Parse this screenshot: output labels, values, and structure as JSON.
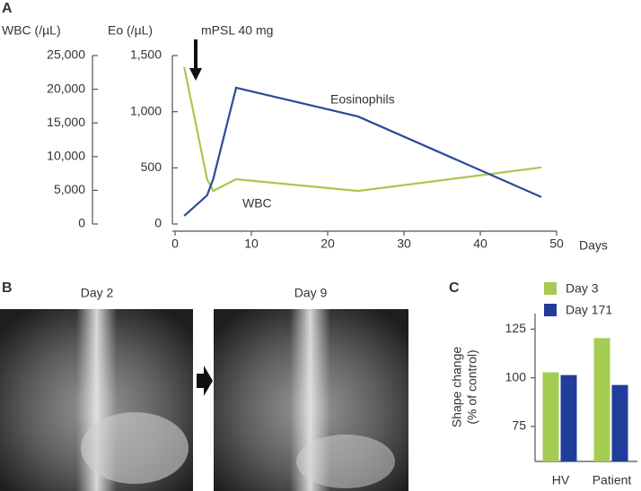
{
  "chart_data": [
    {
      "type": "line",
      "label": "A",
      "y_label": "WBC (/µL)",
      "y2_label": "Eo (/µL)",
      "x_label": "Days",
      "annotations": [
        "mPSL 40 mg",
        "Eosinophils",
        "WBC"
      ],
      "x": [
        1.2,
        4.2,
        5,
        8,
        24,
        48
      ],
      "xlim": [
        0,
        50
      ],
      "xticks": [
        0,
        10,
        20,
        30,
        40,
        50
      ],
      "ylim": [
        0,
        25000
      ],
      "yticks": [
        0,
        {
          "value": 5000,
          "label": "5,000"
        },
        {
          "value": 10000,
          "label": "10,000"
        },
        {
          "value": 15000,
          "label": "15,000"
        },
        {
          "value": 20000,
          "label": "20,000"
        },
        {
          "value": 25000,
          "label": "25,000"
        }
      ],
      "y2lim": [
        0,
        1500
      ],
      "y2ticks": [
        0,
        500,
        {
          "value": 1000,
          "label": "1,000"
        },
        {
          "value": 1500,
          "label": "1,500"
        }
      ],
      "series": [
        {
          "name": "WBC",
          "color": "#a8c94a",
          "values": [
            23300,
            6650,
            4900,
            6650,
            4900,
            8400
          ]
        },
        {
          "name": "Eosinophils",
          "color": "#2a4a9a",
          "axis": "y2",
          "values": [
            72,
            255,
            400,
            1213,
            957,
            240
          ]
        }
      ]
    },
    {
      "type": "bar",
      "label": "C",
      "y_label": [
        "Shape change",
        "(% of control)"
      ],
      "categories": [
        "HV",
        "Patient"
      ],
      "ylim": [
        57,
        133
      ],
      "yticks": [
        75,
        100,
        125
      ],
      "series": [
        {
          "name": "Day 3",
          "color": "#a4cc52",
          "values": [
            102.8,
            120.4
          ]
        },
        {
          "name": "Day 171",
          "color": "#1f3d99",
          "values": [
            101.4,
            96.3
          ]
        }
      ]
    }
  ],
  "figure_b": {
    "label": "B",
    "images": [
      {
        "caption": "Day 2"
      },
      {
        "caption": "Day 9"
      }
    ]
  }
}
